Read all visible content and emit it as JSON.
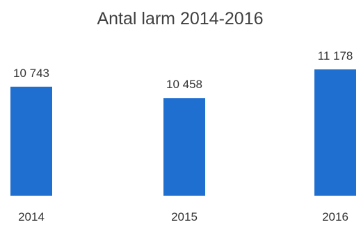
{
  "chart_data": {
    "type": "bar",
    "title": "Antal larm 2014-2016",
    "categories": [
      "2014",
      "2015",
      "2016"
    ],
    "values": [
      10743,
      10458,
      11178
    ],
    "value_labels": [
      "10 743",
      "10 458",
      "11 178"
    ],
    "ylim": [
      8000,
      11300
    ],
    "bar_color": "#1f6fd1",
    "grid": false,
    "legend": "none"
  }
}
